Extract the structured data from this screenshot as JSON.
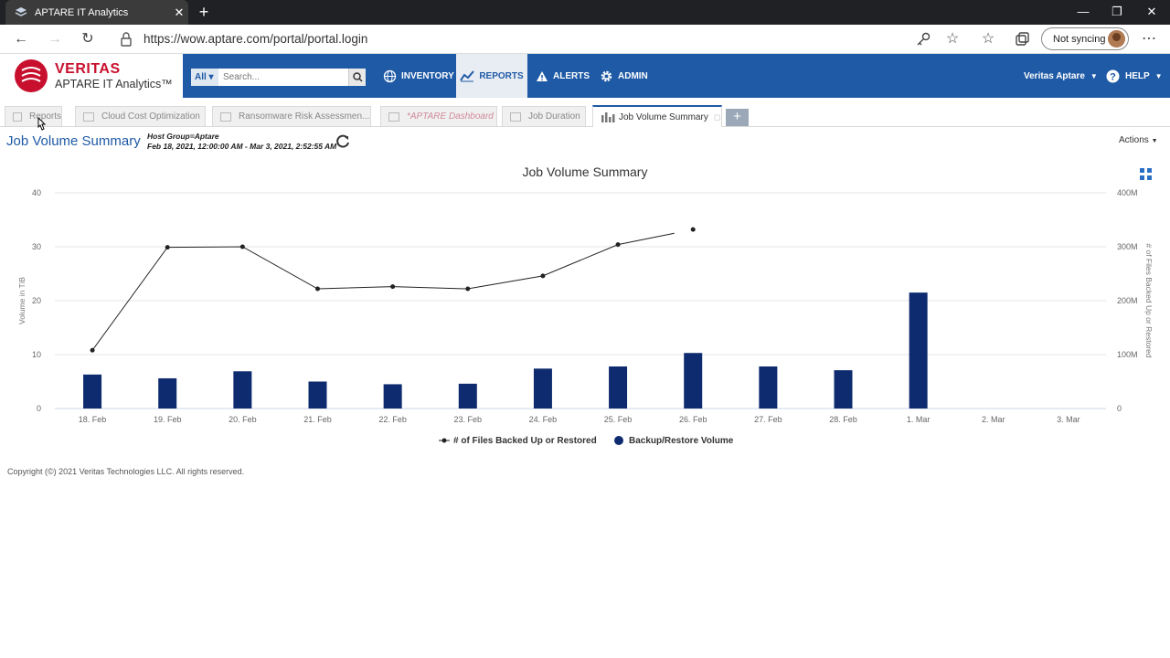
{
  "browser": {
    "tab_title": "APTARE IT Analytics",
    "url": "https://wow.aptare.com/portal/portal.login",
    "sync_label": "Not syncing"
  },
  "app": {
    "brand": "VERITAS",
    "product": "APTARE IT Analytics™",
    "search_scope": "All",
    "search_placeholder": "Search...",
    "nav": {
      "inventory": "INVENTORY",
      "reports": "REPORTS",
      "alerts": "ALERTS",
      "admin": "ADMIN"
    },
    "user": "Veritas Aptare",
    "help": "HELP",
    "accent": "#1f5aa6"
  },
  "report_tabs": [
    {
      "label": "Reports"
    },
    {
      "label": "Cloud Cost Optimization"
    },
    {
      "label": "Ransomware Risk Assessmen..."
    },
    {
      "label": "*APTARE Dashboard"
    },
    {
      "label": "Job Duration"
    },
    {
      "label": "Job Volume Summary"
    }
  ],
  "report": {
    "title": "Job Volume Summary",
    "host_group": "Host Group=Aptare",
    "date_range": "Feb 18, 2021, 12:00:00 AM - Mar 3, 2021, 2:52:55 AM",
    "actions": "Actions"
  },
  "copyright": "Copyright (©) 2021 Veritas Technologies LLC. All rights reserved.",
  "chart_data": {
    "type": "bar+line",
    "title": "Job Volume Summary",
    "categories": [
      "18. Feb",
      "19. Feb",
      "20. Feb",
      "21. Feb",
      "22. Feb",
      "23. Feb",
      "24. Feb",
      "25. Feb",
      "26. Feb",
      "27. Feb",
      "28. Feb",
      "1. Mar",
      "2. Mar",
      "3. Mar"
    ],
    "ylabel_left": "Volume in TiB",
    "ylabel_right": "# of Files Backed Up or Restored",
    "left_ticks": [
      "0",
      "10",
      "20",
      "30",
      "40"
    ],
    "right_ticks": [
      "0",
      "100M",
      "200M",
      "300M",
      "400M"
    ],
    "ylim_left": [
      0,
      40
    ],
    "ylim_right": [
      0,
      400000000
    ],
    "series": [
      {
        "name": "# of Files Backed Up or Restored",
        "kind": "line",
        "axis": "right",
        "color": "#222222",
        "values": [
          108000000,
          299000000,
          300000000,
          222000000,
          226000000,
          222000000,
          246000000,
          304000000,
          332000000,
          null,
          null,
          null,
          null,
          null
        ]
      },
      {
        "name": "Backup/Restore Volume",
        "kind": "bar",
        "axis": "left",
        "color": "#0d2b6e",
        "values": [
          6.3,
          5.6,
          6.9,
          5.0,
          4.5,
          4.6,
          7.4,
          7.8,
          10.3,
          7.8,
          7.1,
          21.5,
          0,
          0
        ]
      }
    ],
    "legend_position": "bottom",
    "grid": true
  }
}
